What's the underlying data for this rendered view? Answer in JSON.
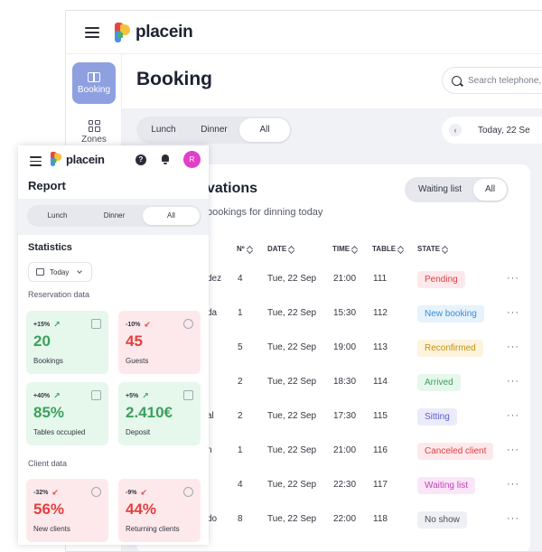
{
  "desktop": {
    "brand": "placein",
    "sidebar": [
      {
        "label": "Booking",
        "icon": "book-icon",
        "active": true
      },
      {
        "label": "Zones",
        "icon": "zones-icon",
        "active": false
      }
    ],
    "title": "Booking",
    "search_placeholder": "Search telephone, ...",
    "meal_tabs": [
      "Lunch",
      "Dinner",
      "All"
    ],
    "meal_selected": "All",
    "date": "Today, 22 Se",
    "card": {
      "title": "vations",
      "subtitle": "bookings for dinning today",
      "filter_tabs": [
        "Waiting list",
        "All"
      ],
      "columns": [
        "Nº",
        "DATE",
        "TIME",
        "TABLE",
        "STATE"
      ],
      "rows": [
        {
          "name": "dez",
          "n": "4",
          "date": "Tue, 22 Sep",
          "time": "21:00",
          "table": "111",
          "state": "Pending",
          "state_color": "#e2403f",
          "state_bg": "#fde9ec"
        },
        {
          "name": "da",
          "n": "1",
          "date": "Tue, 22 Sep",
          "time": "15:30",
          "table": "112",
          "state": "New booking",
          "state_color": "#3b8fd6",
          "state_bg": "#e6f2fc"
        },
        {
          "name": "",
          "n": "5",
          "date": "Tue, 22 Sep",
          "time": "19:00",
          "table": "113",
          "state": "Reconfirmed",
          "state_color": "#c98f0b",
          "state_bg": "#fdf4de"
        },
        {
          "name": "",
          "n": "2",
          "date": "Tue, 22 Sep",
          "time": "18:30",
          "table": "114",
          "state": "Arrived",
          "state_color": "#3ca05c",
          "state_bg": "#e6f7ec"
        },
        {
          "name": "al",
          "n": "2",
          "date": "Tue, 22 Sep",
          "time": "17:30",
          "table": "115",
          "state": "Sitting",
          "state_color": "#5b5fd0",
          "state_bg": "#ecebfb"
        },
        {
          "name": "n",
          "n": "1",
          "date": "Tue, 22 Sep",
          "time": "21:00",
          "table": "116",
          "state": "Canceled client",
          "state_color": "#e2403f",
          "state_bg": "#fde9ec"
        },
        {
          "name": "",
          "n": "4",
          "date": "Tue, 22 Sep",
          "time": "22:30",
          "table": "117",
          "state": "Waiting list",
          "state_color": "#c03fb8",
          "state_bg": "#fbe6f8"
        },
        {
          "name": "do",
          "n": "8",
          "date": "Tue, 22 Sep",
          "time": "22:00",
          "table": "118",
          "state": "No show",
          "state_color": "#4b4f5c",
          "state_bg": "#eef0f4"
        }
      ]
    }
  },
  "mobile": {
    "brand": "placein",
    "help_glyph": "?",
    "avatar": "R",
    "title": "Report",
    "meal_tabs": [
      "Lunch",
      "Dinner",
      "All"
    ],
    "statistics_title": "Statistics",
    "period": "Today",
    "reservation_section": "Reservation data",
    "client_section": "Client data",
    "tiles": [
      {
        "change": "+15%",
        "arrow": "↗",
        "value": "20",
        "label": "Bookings",
        "tone": "green"
      },
      {
        "change": "-10%",
        "arrow": "↙",
        "value": "45",
        "label": "Guests",
        "tone": "red"
      },
      {
        "change": "+40%",
        "arrow": "↗",
        "value": "85%",
        "label": "Tables occupied",
        "tone": "green"
      },
      {
        "change": "+5%",
        "arrow": "↗",
        "value": "2.410€",
        "label": "Deposit",
        "tone": "green"
      },
      {
        "change": "-32%",
        "arrow": "↙",
        "value": "56%",
        "label": "New clients",
        "tone": "red"
      },
      {
        "change": "-9%",
        "arrow": "↙",
        "value": "44%",
        "label": "Returning clients",
        "tone": "red"
      }
    ]
  }
}
